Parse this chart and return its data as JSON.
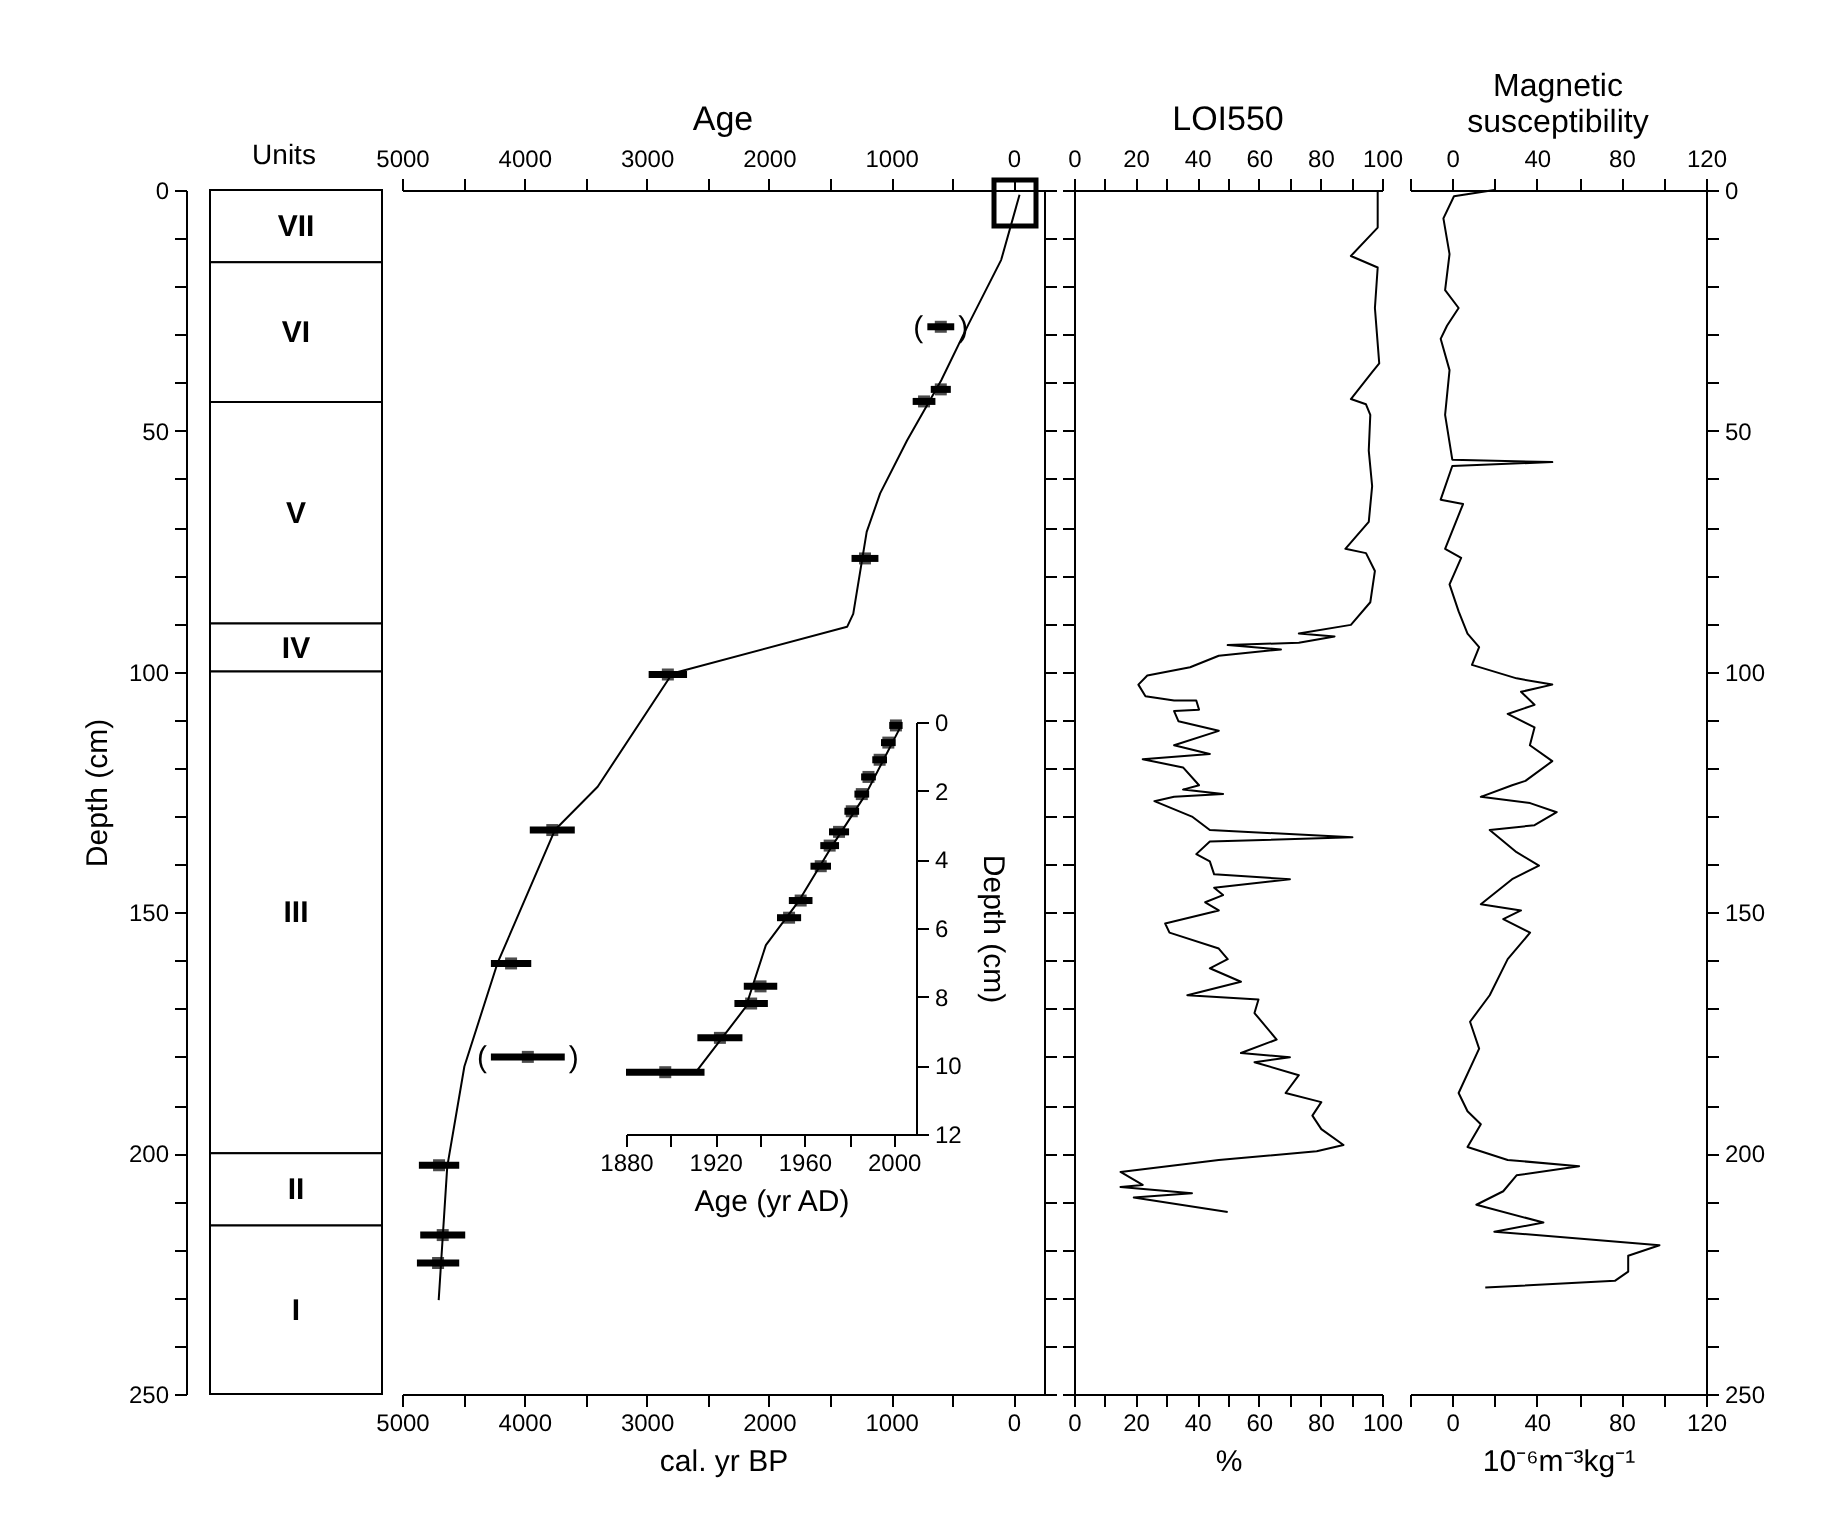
{
  "chart_data": [
    {
      "type": "bar",
      "stacked": true,
      "title": "Units",
      "ylabel": "Depth (cm)",
      "categories": [
        null
      ],
      "ylim": [
        250,
        0
      ],
      "yticks": [
        0,
        {
          "value": 10,
          "label": null
        },
        {
          "value": 20,
          "label": null
        },
        {
          "value": 30,
          "label": null
        },
        {
          "value": 40,
          "label": null
        },
        50,
        {
          "value": 60,
          "label": null
        },
        {
          "value": 70,
          "label": null
        },
        {
          "value": 80,
          "label": null
        },
        {
          "value": 90,
          "label": null
        },
        100,
        {
          "value": 110,
          "label": null
        },
        {
          "value": 120,
          "label": null
        },
        {
          "value": 130,
          "label": null
        },
        {
          "value": 140,
          "label": null
        },
        150,
        {
          "value": 160,
          "label": null
        },
        {
          "value": 170,
          "label": null
        },
        {
          "value": 180,
          "label": null
        },
        {
          "value": 190,
          "label": null
        },
        200,
        {
          "value": 210,
          "label": null
        },
        {
          "value": 220,
          "label": null
        },
        {
          "value": 230,
          "label": null
        },
        {
          "value": 240,
          "label": null
        },
        250
      ],
      "series": [
        {
          "name": "VII",
          "color": "#ffffff",
          "values": [
            15
          ]
        },
        {
          "name": "VI",
          "color": "#ffffff",
          "values": [
            29
          ]
        },
        {
          "name": "V",
          "color": "#ffffff",
          "values": [
            46
          ]
        },
        {
          "name": "IV",
          "color": "#ffffff",
          "values": [
            10
          ]
        },
        {
          "name": "III",
          "color": "#ffffff",
          "values": [
            100
          ]
        },
        {
          "name": "II",
          "color": "#ffffff",
          "values": [
            15
          ]
        },
        {
          "name": "I",
          "color": "#ffffff",
          "values": [
            35
          ]
        }
      ]
    },
    {
      "type": "line",
      "title": "Age",
      "xlabel": "cal. yr BP",
      "xlim": [
        5000,
        -250
      ],
      "xticks": [
        5000,
        {
          "value": 4500,
          "label": null
        },
        4000,
        {
          "value": 3500,
          "label": null
        },
        3000,
        {
          "value": 2500,
          "label": null
        },
        2000,
        {
          "value": 1500,
          "label": null
        },
        1000,
        {
          "value": 500,
          "label": null
        },
        0
      ],
      "x2lim": [
        5000,
        -250
      ],
      "x2ticks": [
        5000,
        {
          "value": 4500,
          "label": null
        },
        4000,
        {
          "value": 3500,
          "label": null
        },
        3000,
        {
          "value": 2500,
          "label": null
        },
        2000,
        {
          "value": 1500,
          "label": null
        },
        1000,
        {
          "value": 500,
          "label": null
        },
        0
      ],
      "ylim": [
        250,
        0
      ],
      "yticks": [
        0,
        {
          "value": 10,
          "label": null
        },
        {
          "value": 20,
          "label": null
        },
        {
          "value": 30,
          "label": null
        },
        {
          "value": 40,
          "label": null
        },
        50,
        {
          "value": 60,
          "label": null
        },
        {
          "value": 70,
          "label": null
        },
        {
          "value": 80,
          "label": null
        },
        {
          "value": 90,
          "label": null
        },
        100,
        {
          "value": 110,
          "label": null
        },
        {
          "value": 120,
          "label": null
        },
        {
          "value": 130,
          "label": null
        },
        {
          "value": 140,
          "label": null
        },
        150,
        {
          "value": 160,
          "label": null
        },
        {
          "value": 170,
          "label": null
        },
        {
          "value": 180,
          "label": null
        },
        {
          "value": 190,
          "label": null
        },
        200,
        {
          "value": 210,
          "label": null
        },
        {
          "value": 220,
          "label": null
        },
        {
          "value": 230,
          "label": null
        },
        {
          "value": 240,
          "label": null
        },
        250
      ],
      "tick_labels": "x",
      "series": [
        {
          "type": "line",
          "color": "#000000",
          "x": [
            -50,
            100,
            370,
            590,
            870,
            1090,
            1200,
            1310,
            1360,
            2790,
            3400,
            3750,
            4220,
            4490,
            4630,
            4700
          ],
          "values": [
            1,
            14.5,
            28,
            39.5,
            52,
            63,
            71,
            88,
            90.7,
            100.4,
            123.9,
            132.9,
            160.6,
            182,
            202.8,
            230.5
          ]
        },
        {
          "type": "scatter",
          "color": "#000000",
          "marker": "square",
          "x": [
            594,
            594,
            731,
            1214,
            2826,
            3771,
            4108,
            3971,
            4697,
            4667,
            4705
          ],
          "values": [
            28.4,
            41.4,
            43.9,
            76.5,
            100.6,
            132.9,
            160.6,
            180,
            202.5,
            217,
            222.8
          ],
          "xerrors": [
            110,
            82,
            93,
            110,
            157,
            184,
            165,
            302,
            165,
            184,
            173
          ]
        }
      ],
      "annotations": [
        {
          "text": "(",
          "x": 704,
          "y": 28.4
        },
        {
          "text": ")",
          "x": 484,
          "y": 28.4
        },
        {
          "text": "(",
          "x": 4273,
          "y": 180
        },
        {
          "text": ")",
          "x": 3669,
          "y": 180
        }
      ]
    },
    {
      "type": "line",
      "xlabel": "Age (yr AD)",
      "ylabel": "Depth (cm)",
      "xlim": [
        1880,
        2010
      ],
      "xticks": [
        1880,
        {
          "value": 1900,
          "label": null
        },
        1920,
        {
          "value": 1940,
          "label": null
        },
        1960,
        {
          "value": 1980,
          "label": null
        },
        2000
      ],
      "ylim": [
        12,
        0
      ],
      "yticks": [
        0,
        2,
        4,
        6,
        8,
        10,
        12
      ],
      "series": [
        {
          "type": "line",
          "color": "#000000",
          "x": [
            1911.3,
            1933.7,
            1942.7,
            1957.6,
            1972.5,
            1987.5,
            2003
          ],
          "values": [
            10.2,
            8.3,
            6.5,
            5.2,
            3.6,
            2.1,
            0.15
          ]
        },
        {
          "type": "scatter",
          "color": "#000000",
          "marker": "square",
          "x": [
            2001,
            1997.6,
            1993.7,
            1988.7,
            1985.7,
            1981.2,
            1975.5,
            1971.3,
            1967.3,
            1958.3,
            1953.1,
            1940.3,
            1936.1,
            1922.1,
            1897.6
          ],
          "values": [
            0.1,
            0.6,
            1.1,
            1.6,
            2.1,
            2.6,
            3.2,
            3.6,
            4.2,
            5.2,
            5.7,
            7.7,
            8.2,
            9.2,
            10.2
          ],
          "xerrors": [
            3,
            3.3,
            3.3,
            3.3,
            3.3,
            3.3,
            4.5,
            4.2,
            4.6,
            5.3,
            5.4,
            7.5,
            7.5,
            10.1,
            17.6
          ]
        }
      ]
    },
    {
      "type": "line",
      "title": "LOI550",
      "xlabel": "%",
      "xlim": [
        0,
        100
      ],
      "xticks": [
        0,
        {
          "value": 10,
          "label": null
        },
        20,
        {
          "value": 30,
          "label": null
        },
        40,
        {
          "value": 50,
          "label": null
        },
        60,
        {
          "value": 70,
          "label": null
        },
        80,
        {
          "value": 90,
          "label": null
        },
        100
      ],
      "x2lim": [
        0,
        100
      ],
      "x2ticks": [
        0,
        {
          "value": 10,
          "label": null
        },
        20,
        {
          "value": 30,
          "label": null
        },
        40,
        {
          "value": 50,
          "label": null
        },
        60,
        {
          "value": 70,
          "label": null
        },
        80,
        {
          "value": 90,
          "label": null
        },
        100
      ],
      "ylim": [
        250,
        0
      ],
      "yticks": [
        0,
        {
          "value": 10,
          "label": null
        },
        {
          "value": 20,
          "label": null
        },
        {
          "value": 30,
          "label": null
        },
        {
          "value": 40,
          "label": null
        },
        50,
        {
          "value": 60,
          "label": null
        },
        {
          "value": 70,
          "label": null
        },
        {
          "value": 80,
          "label": null
        },
        {
          "value": 90,
          "label": null
        },
        100,
        {
          "value": 110,
          "label": null
        },
        {
          "value": 120,
          "label": null
        },
        {
          "value": 130,
          "label": null
        },
        {
          "value": 140,
          "label": null
        },
        150,
        {
          "value": 160,
          "label": null
        },
        {
          "value": 170,
          "label": null
        },
        {
          "value": 180,
          "label": null
        },
        {
          "value": 190,
          "label": null
        },
        200,
        {
          "value": 210,
          "label": null
        },
        {
          "value": 220,
          "label": null
        },
        {
          "value": 230,
          "label": null
        },
        {
          "value": 240,
          "label": null
        },
        250
      ],
      "tick_labels": "x",
      "series": [
        {
          "color": "#000000",
          "x": [
            98.6,
            98.6,
            89.9,
            98.6,
            97.7,
            99.1,
            96.8,
            89.9,
            94.8,
            96.2,
            95.7,
            96.8,
            95.7,
            88.1,
            94.8,
            97.7,
            96.2,
            89.9,
            73,
            84.6,
            73,
            49.9,
            67.2,
            47,
            37.7,
            23.8,
            20.9,
            23.2,
            32.5,
            39.7,
            40.6,
            32.5,
            33.9,
            47,
            32.5,
            44.1,
            22.3,
            35.4,
            40.6,
            35.4,
            48.4,
            32.5,
            26.1,
            38.3,
            44.1,
            90.4,
            44.1,
            39.7,
            44.1,
            45.5,
            70.1,
            45.5,
            48.4,
            42.6,
            47,
            29.6,
            31,
            47,
            49.9,
            44.1,
            54.2,
            36.8,
            59.9,
            58.6,
            65.8,
            54.2,
            70.1,
            58.6,
            73,
            68.7,
            80.3,
            77.4,
            80.3,
            87.5,
            78.8,
            47,
            15.1,
            22.3,
            15.1,
            38.3,
            19.4,
            49.9
          ],
          "values": [
            0,
            7.8,
            13.7,
            16.1,
            24.5,
            36,
            37.8,
            43.4,
            44.5,
            46.7,
            54.1,
            61.5,
            68.9,
            74.5,
            75.4,
            79.1,
            85.6,
            90.3,
            92.1,
            92.7,
            94,
            94.5,
            95.4,
            96.7,
            99.1,
            100.8,
            102.7,
            105.1,
            106,
            106,
            107.9,
            108.2,
            110.3,
            112.3,
            115.3,
            117.1,
            118.2,
            119.9,
            123.6,
            124.5,
            125.4,
            126,
            126.9,
            130.1,
            132.9,
            134.4,
            135.3,
            137.9,
            139.4,
            142.1,
            143.1,
            144.9,
            146.4,
            147.9,
            149.6,
            152.3,
            154.2,
            157.5,
            159.7,
            161.6,
            164.4,
            167.2,
            168.1,
            170.9,
            176.4,
            179.2,
            180.1,
            181.1,
            183.8,
            187.5,
            189.4,
            192.2,
            195,
            198.3,
            199.6,
            201.4,
            203.9,
            206.6,
            207,
            208.3,
            209.2,
            212.2
          ]
        }
      ]
    },
    {
      "type": "line",
      "title": "Magnetic susceptibility",
      "xlabel": "10⁻⁶m⁻³kg⁻¹",
      "xlim": [
        -20,
        120
      ],
      "xticks": [
        {
          "value": -20,
          "label": null
        },
        0,
        {
          "value": 20,
          "label": null
        },
        40,
        {
          "value": 60,
          "label": null
        },
        80,
        {
          "value": 100,
          "label": null
        },
        120
      ],
      "x2lim": [
        -20,
        120
      ],
      "x2ticks": [
        {
          "value": -20,
          "label": null
        },
        0,
        {
          "value": 20,
          "label": null
        },
        40,
        {
          "value": 60,
          "label": null
        },
        80,
        {
          "value": 100,
          "label": null
        },
        120
      ],
      "ylim": [
        250,
        0
      ],
      "yticks": [
        0,
        {
          "value": 10,
          "label": null
        },
        {
          "value": 20,
          "label": null
        },
        {
          "value": 30,
          "label": null
        },
        {
          "value": 40,
          "label": null
        },
        50,
        {
          "value": 60,
          "label": null
        },
        {
          "value": 70,
          "label": null
        },
        {
          "value": 80,
          "label": null
        },
        {
          "value": 90,
          "label": null
        },
        100,
        {
          "value": 110,
          "label": null
        },
        {
          "value": 120,
          "label": null
        },
        {
          "value": 130,
          "label": null
        },
        {
          "value": 140,
          "label": null
        },
        150,
        {
          "value": 160,
          "label": null
        },
        {
          "value": 170,
          "label": null
        },
        {
          "value": 180,
          "label": null
        },
        {
          "value": 190,
          "label": null
        },
        200,
        {
          "value": 210,
          "label": null
        },
        {
          "value": 220,
          "label": null
        },
        {
          "value": 230,
          "label": null
        },
        {
          "value": 240,
          "label": null
        },
        250
      ],
      "series": [
        {
          "color": "#000000",
          "x": [
            19.9,
            0.8,
            -4.2,
            -1.3,
            -3.4,
            3,
            -2.5,
            -5.5,
            -1.3,
            -3.4,
            0,
            47.3,
            0,
            -5.5,
            5.1,
            -3.4,
            4.2,
            -1.3,
            3,
            7.2,
            12.7,
            9.3,
            30.4,
            47.3,
            32.5,
            38.9,
            26.2,
            38.9,
            36.7,
            47.3,
            34.6,
            28.3,
            13.5,
            36.8,
            49.4,
            38.9,
            17.7,
            30.4,
            41,
            28.3,
            13.5,
            32.5,
            24.1,
            36.8,
            26.2,
            17.7,
            8.4,
            12.7,
            3,
            7.2,
            13.5,
            7.2,
            26.2,
            60,
            30.4,
            24.1,
            11.4,
            43.1,
            19.9,
            98,
            83.2,
            83.2,
            76.9,
            15.6
          ],
          "values": [
            0,
            1.3,
            5.9,
            13.3,
            20.8,
            24.5,
            28.2,
            30.9,
            37.4,
            46.7,
            56,
            56.5,
            57.3,
            64.3,
            65.2,
            74.5,
            76.4,
            81.9,
            87.5,
            92.1,
            94.9,
            98.6,
            101.4,
            102.7,
            104.2,
            106.9,
            108.8,
            111.6,
            115.3,
            118.6,
            122.7,
            123.6,
            126,
            127.3,
            129.2,
            131.9,
            132.9,
            137.5,
            140.3,
            143.1,
            148.3,
            149.6,
            151.4,
            154.2,
            159.7,
            167.2,
            172.7,
            178.3,
            187.5,
            191.3,
            194,
            198.7,
            201.4,
            202.7,
            204.6,
            207.9,
            210.7,
            214.4,
            216.3,
            219.1,
            221.3,
            224.6,
            226.5,
            227.9
          ]
        }
      ]
    }
  ]
}
